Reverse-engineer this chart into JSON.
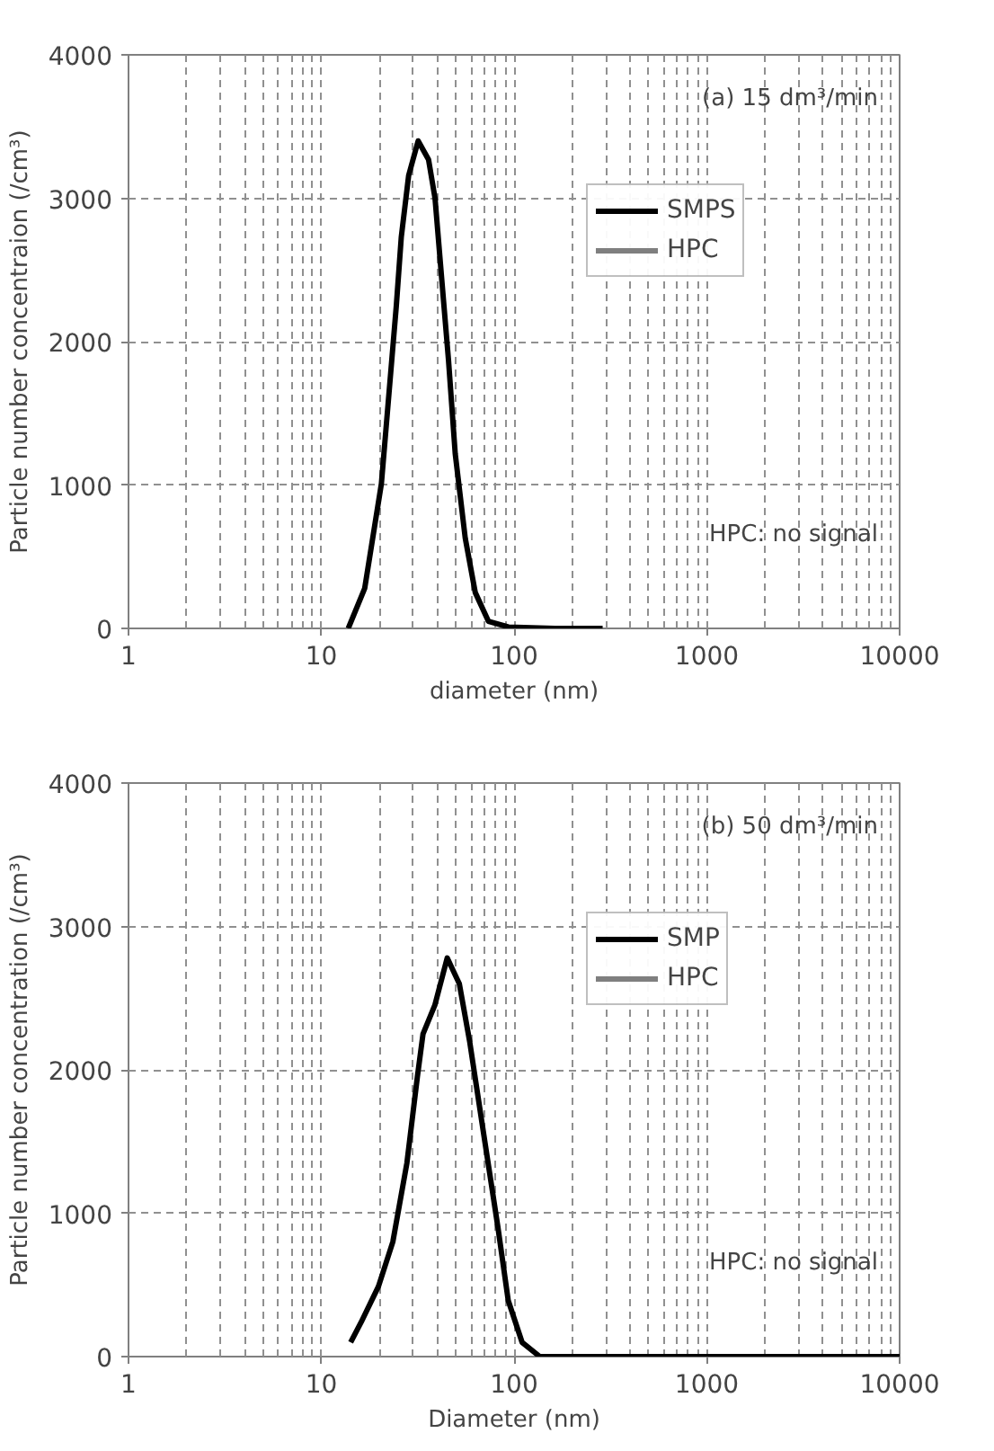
{
  "chart_data": [
    {
      "type": "line",
      "xlabel": "diameter (nm)",
      "ylabel": "Particle number concentraion (/cm³)",
      "log": "x",
      "xlim": [
        1,
        10000
      ],
      "ylim": [
        0,
        4000
      ],
      "xticks": [
        1,
        10,
        100,
        1000,
        10000
      ],
      "yticks": [
        0,
        1000,
        2000,
        3000,
        4000
      ],
      "grid": true,
      "legend": "top right",
      "line_style": "solid",
      "annotations": [
        "(a) 15 dm³/min",
        "HPC: no signal"
      ],
      "series": [
        {
          "name": "SMPS",
          "color": "#000000",
          "x": [
            13.8,
            16.8,
            20.5,
            23.2,
            24.5,
            26,
            28.4,
            31.8,
            36,
            38.9,
            42,
            45.7,
            49.5,
            55.8,
            62.9,
            73.6,
            93.5,
            163,
            288
          ],
          "values": [
            0,
            280,
            1010,
            1870,
            2250,
            2730,
            3160,
            3400,
            3270,
            3000,
            2460,
            1870,
            1220,
            630,
            250,
            50,
            10,
            0,
            0
          ]
        },
        {
          "name": "HPC",
          "color": "#7f7f7f"
        }
      ]
    },
    {
      "type": "line",
      "xlabel": "Diameter (nm)",
      "ylabel": "Particle number concentration (/cm³)",
      "log": "x",
      "xlim": [
        1,
        10000
      ],
      "ylim": [
        0,
        4000
      ],
      "xticks": [
        1,
        10,
        100,
        1000,
        10000
      ],
      "yticks": [
        0,
        1000,
        2000,
        3000,
        4000
      ],
      "grid": true,
      "legend": "top right",
      "line_style": "solid",
      "annotations": [
        "(b) 50 dm³/min",
        "HPC: no signal"
      ],
      "series": [
        {
          "name": "SMP",
          "color": "#000000",
          "x": [
            14.2,
            16.1,
            19.8,
            23.5,
            27.8,
            31.5,
            33.7,
            38.8,
            45,
            52,
            58.8,
            69.6,
            82.5,
            93.3,
            110,
            136,
            198,
            10000
          ],
          "values": [
            100,
            240,
            490,
            800,
            1350,
            1950,
            2250,
            2450,
            2780,
            2600,
            2200,
            1550,
            900,
            390,
            100,
            0,
            0,
            0
          ]
        },
        {
          "name": "HPC",
          "color": "#7f7f7f"
        }
      ]
    }
  ]
}
